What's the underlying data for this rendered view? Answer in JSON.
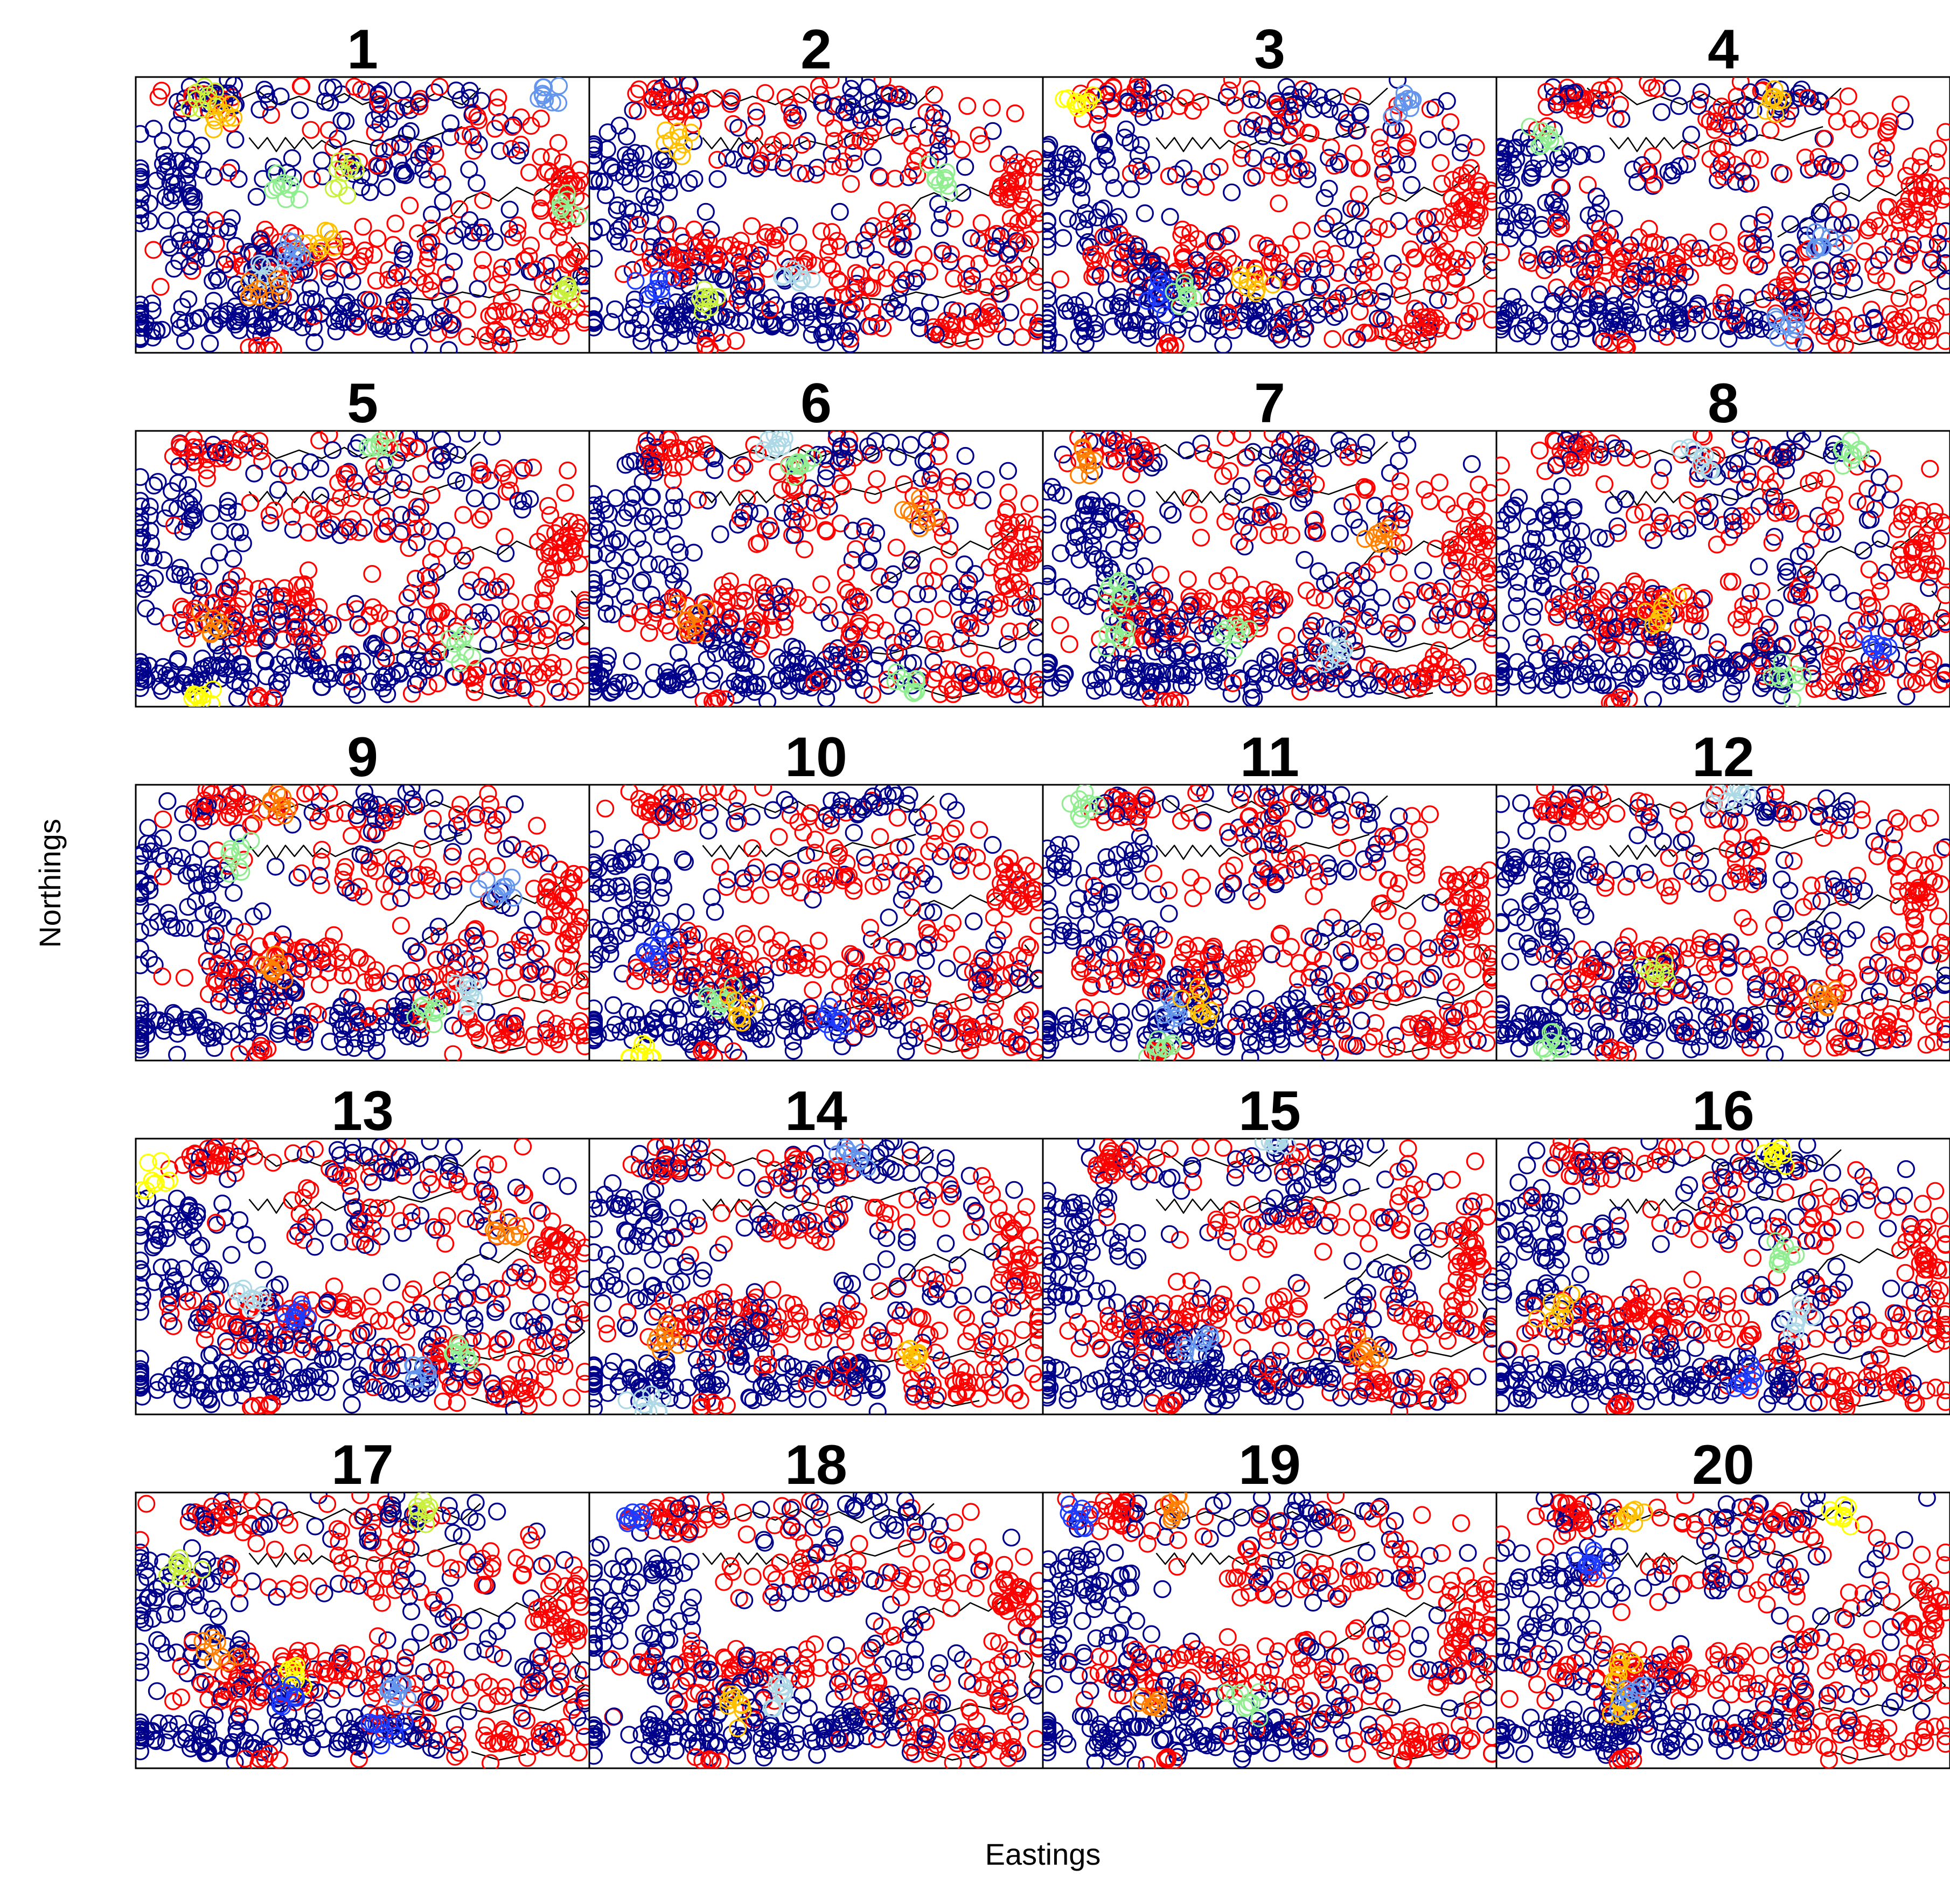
{
  "chart_data": {
    "type": "scatter",
    "layout": "small-multiples",
    "rows": 5,
    "cols": 4,
    "xlabel": "Eastings",
    "ylabel": "Northings",
    "marker": "open-circle",
    "palette": {
      "base_a": "#00008b",
      "base_b": "#ff0000",
      "blue": "#1e3cff",
      "steelblue": "#6495ed",
      "lightblue": "#add8e6",
      "lightgreen": "#90ee90",
      "yellowgreen": "#c8f03c",
      "yellow": "#ffff00",
      "gold": "#ffc000",
      "orange": "#ff8000"
    },
    "panels": [
      {
        "title": "1",
        "red_share": 0.22,
        "highlights": [
          {
            "color": "yellowgreen",
            "x": 0.16,
            "y": 0.92
          },
          {
            "color": "gold",
            "x": 0.2,
            "y": 0.86
          },
          {
            "color": "lightgreen",
            "x": 0.33,
            "y": 0.6
          },
          {
            "color": "yellowgreen",
            "x": 0.46,
            "y": 0.64
          },
          {
            "color": "gold",
            "x": 0.41,
            "y": 0.4
          },
          {
            "color": "steelblue",
            "x": 0.34,
            "y": 0.36
          },
          {
            "color": "lightblue",
            "x": 0.29,
            "y": 0.28
          },
          {
            "color": "orange",
            "x": 0.28,
            "y": 0.21
          },
          {
            "color": "lightgreen",
            "x": 0.95,
            "y": 0.52
          },
          {
            "color": "yellowgreen",
            "x": 0.95,
            "y": 0.2
          },
          {
            "color": "steelblue",
            "x": 0.9,
            "y": 0.94
          }
        ]
      },
      {
        "title": "2",
        "red_share": 0.62,
        "highlights": [
          {
            "color": "gold",
            "x": 0.2,
            "y": 0.78
          },
          {
            "color": "yellowgreen",
            "x": 0.26,
            "y": 0.2
          },
          {
            "color": "blue",
            "x": 0.15,
            "y": 0.25
          },
          {
            "color": "lightgreen",
            "x": 0.78,
            "y": 0.64
          },
          {
            "color": "lightblue",
            "x": 0.46,
            "y": 0.26
          }
        ]
      },
      {
        "title": "3",
        "red_share": 0.58,
        "highlights": [
          {
            "color": "yellow",
            "x": 0.08,
            "y": 0.92
          },
          {
            "color": "blue",
            "x": 0.27,
            "y": 0.21
          },
          {
            "color": "lightgreen",
            "x": 0.32,
            "y": 0.23
          },
          {
            "color": "gold",
            "x": 0.46,
            "y": 0.26
          },
          {
            "color": "steelblue",
            "x": 0.8,
            "y": 0.9
          }
        ]
      },
      {
        "title": "4",
        "red_share": 0.7,
        "highlights": [
          {
            "color": "lightgreen",
            "x": 0.1,
            "y": 0.76
          },
          {
            "color": "gold",
            "x": 0.62,
            "y": 0.9
          },
          {
            "color": "steelblue",
            "x": 0.72,
            "y": 0.38
          },
          {
            "color": "steelblue",
            "x": 0.64,
            "y": 0.1
          }
        ]
      },
      {
        "title": "5",
        "red_share": 0.72,
        "highlights": [
          {
            "color": "orange",
            "x": 0.17,
            "y": 0.3
          },
          {
            "color": "lightgreen",
            "x": 0.72,
            "y": 0.22
          },
          {
            "color": "yellow",
            "x": 0.14,
            "y": 0.05
          },
          {
            "color": "lightgreen",
            "x": 0.53,
            "y": 0.96
          }
        ]
      },
      {
        "title": "6",
        "red_share": 0.72,
        "highlights": [
          {
            "color": "orange",
            "x": 0.22,
            "y": 0.32
          },
          {
            "color": "lightblue",
            "x": 0.41,
            "y": 0.94
          },
          {
            "color": "lightgreen",
            "x": 0.46,
            "y": 0.86
          },
          {
            "color": "orange",
            "x": 0.73,
            "y": 0.72
          },
          {
            "color": "lightgreen",
            "x": 0.71,
            "y": 0.09
          }
        ]
      },
      {
        "title": "7",
        "red_share": 0.72,
        "highlights": [
          {
            "color": "lightgreen",
            "x": 0.16,
            "y": 0.43
          },
          {
            "color": "lightgreen",
            "x": 0.16,
            "y": 0.26
          },
          {
            "color": "orange",
            "x": 0.09,
            "y": 0.88
          },
          {
            "color": "orange",
            "x": 0.74,
            "y": 0.62
          },
          {
            "color": "lightgreen",
            "x": 0.42,
            "y": 0.26
          },
          {
            "color": "lightblue",
            "x": 0.64,
            "y": 0.2
          }
        ]
      },
      {
        "title": "8",
        "red_share": 0.72,
        "highlights": [
          {
            "color": "gold",
            "x": 0.36,
            "y": 0.34
          },
          {
            "color": "lightgreen",
            "x": 0.64,
            "y": 0.1
          },
          {
            "color": "blue",
            "x": 0.84,
            "y": 0.2
          },
          {
            "color": "lightblue",
            "x": 0.45,
            "y": 0.9
          },
          {
            "color": "lightgreen",
            "x": 0.78,
            "y": 0.92
          }
        ]
      },
      {
        "title": "9",
        "red_share": 0.72,
        "highlights": [
          {
            "color": "orange",
            "x": 0.32,
            "y": 0.93
          },
          {
            "color": "lightgreen",
            "x": 0.21,
            "y": 0.75
          },
          {
            "color": "orange",
            "x": 0.31,
            "y": 0.34
          },
          {
            "color": "lightgreen",
            "x": 0.64,
            "y": 0.17
          },
          {
            "color": "lightblue",
            "x": 0.72,
            "y": 0.24
          },
          {
            "color": "steelblue",
            "x": 0.8,
            "y": 0.62
          }
        ]
      },
      {
        "title": "10",
        "red_share": 0.72,
        "highlights": [
          {
            "color": "lightgreen",
            "x": 0.28,
            "y": 0.22
          },
          {
            "color": "gold",
            "x": 0.33,
            "y": 0.18
          },
          {
            "color": "blue",
            "x": 0.16,
            "y": 0.4
          },
          {
            "color": "yellow",
            "x": 0.12,
            "y": 0.03
          },
          {
            "color": "blue",
            "x": 0.54,
            "y": 0.14
          }
        ]
      },
      {
        "title": "11",
        "red_share": 0.72,
        "highlights": [
          {
            "color": "lightgreen",
            "x": 0.1,
            "y": 0.93
          },
          {
            "color": "steelblue",
            "x": 0.3,
            "y": 0.18
          },
          {
            "color": "gold",
            "x": 0.34,
            "y": 0.2
          },
          {
            "color": "lightgreen",
            "x": 0.26,
            "y": 0.03
          }
        ]
      },
      {
        "title": "12",
        "red_share": 0.74,
        "highlights": [
          {
            "color": "yellowgreen",
            "x": 0.36,
            "y": 0.33
          },
          {
            "color": "orange",
            "x": 0.72,
            "y": 0.22
          },
          {
            "color": "lightgreen",
            "x": 0.12,
            "y": 0.05
          },
          {
            "color": "lightblue",
            "x": 0.52,
            "y": 0.97
          }
        ]
      },
      {
        "title": "13",
        "red_share": 0.7,
        "highlights": [
          {
            "color": "yellow",
            "x": 0.04,
            "y": 0.85
          },
          {
            "color": "lightblue",
            "x": 0.26,
            "y": 0.42
          },
          {
            "color": "blue",
            "x": 0.36,
            "y": 0.36
          },
          {
            "color": "orange",
            "x": 0.82,
            "y": 0.66
          },
          {
            "color": "lightgreen",
            "x": 0.72,
            "y": 0.22
          },
          {
            "color": "steelblue",
            "x": 0.63,
            "y": 0.15
          }
        ]
      },
      {
        "title": "14",
        "red_share": 0.72,
        "highlights": [
          {
            "color": "orange",
            "x": 0.16,
            "y": 0.27
          },
          {
            "color": "gold",
            "x": 0.7,
            "y": 0.22
          },
          {
            "color": "lightblue",
            "x": 0.13,
            "y": 0.04
          },
          {
            "color": "steelblue",
            "x": 0.58,
            "y": 0.94
          }
        ]
      },
      {
        "title": "15",
        "red_share": 0.72,
        "highlights": [
          {
            "color": "steelblue",
            "x": 0.33,
            "y": 0.27
          },
          {
            "color": "orange",
            "x": 0.72,
            "y": 0.22
          },
          {
            "color": "lightblue",
            "x": 0.52,
            "y": 0.97
          }
        ]
      },
      {
        "title": "16",
        "red_share": 0.72,
        "highlights": [
          {
            "color": "gold",
            "x": 0.13,
            "y": 0.4
          },
          {
            "color": "lightgreen",
            "x": 0.63,
            "y": 0.58
          },
          {
            "color": "lightblue",
            "x": 0.66,
            "y": 0.36
          },
          {
            "color": "blue",
            "x": 0.55,
            "y": 0.14
          },
          {
            "color": "yellow",
            "x": 0.63,
            "y": 0.92
          }
        ]
      },
      {
        "title": "17",
        "red_share": 0.72,
        "highlights": [
          {
            "color": "yellowgreen",
            "x": 0.1,
            "y": 0.74
          },
          {
            "color": "orange",
            "x": 0.18,
            "y": 0.44
          },
          {
            "color": "yellow",
            "x": 0.36,
            "y": 0.34
          },
          {
            "color": "blue",
            "x": 0.33,
            "y": 0.27
          },
          {
            "color": "steelblue",
            "x": 0.58,
            "y": 0.3
          },
          {
            "color": "blue",
            "x": 0.55,
            "y": 0.14
          },
          {
            "color": "yellowgreen",
            "x": 0.64,
            "y": 0.93
          }
        ]
      },
      {
        "title": "18",
        "red_share": 0.72,
        "highlights": [
          {
            "color": "gold",
            "x": 0.33,
            "y": 0.2
          },
          {
            "color": "lightblue",
            "x": 0.42,
            "y": 0.26
          },
          {
            "color": "blue",
            "x": 0.1,
            "y": 0.9
          }
        ]
      },
      {
        "title": "19",
        "red_share": 0.72,
        "highlights": [
          {
            "color": "orange",
            "x": 0.25,
            "y": 0.22
          },
          {
            "color": "lightgreen",
            "x": 0.44,
            "y": 0.24
          },
          {
            "color": "orange",
            "x": 0.29,
            "y": 0.96
          },
          {
            "color": "blue",
            "x": 0.08,
            "y": 0.92
          }
        ]
      },
      {
        "title": "20",
        "red_share": 0.72,
        "highlights": [
          {
            "color": "gold",
            "x": 0.27,
            "y": 0.36
          },
          {
            "color": "gold",
            "x": 0.27,
            "y": 0.22
          },
          {
            "color": "gold",
            "x": 0.3,
            "y": 0.92
          },
          {
            "color": "blue",
            "x": 0.2,
            "y": 0.75
          },
          {
            "color": "steelblue",
            "x": 0.3,
            "y": 0.26
          },
          {
            "color": "yellow",
            "x": 0.75,
            "y": 0.9
          }
        ]
      }
    ]
  }
}
